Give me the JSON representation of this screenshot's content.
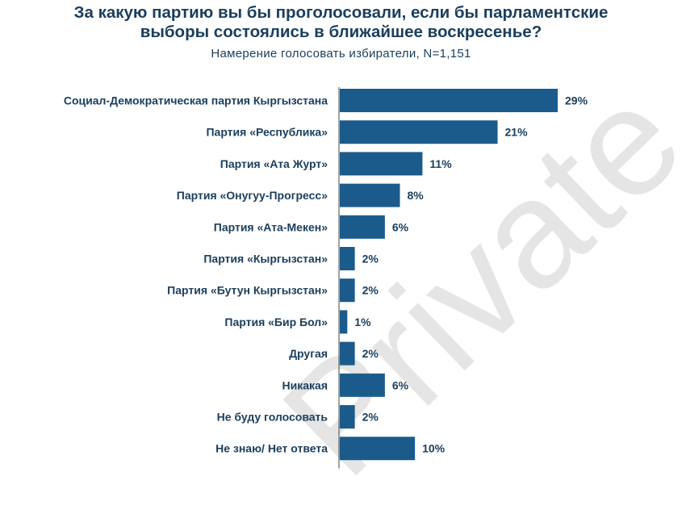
{
  "watermark": "Private",
  "colors": {
    "bar": "#1b5b8c",
    "axis": "#444444",
    "text": "#1a3e5c"
  },
  "chart_data": {
    "type": "bar",
    "orientation": "horizontal",
    "title": "За какую партию вы бы проголосовали, если бы парламентские выборы состоялись в ближайшее воскресенье?",
    "title_lines": [
      "За какую партию вы бы проголосовали, если бы парламентские",
      "выборы состоялись в ближайшее воскресенье?"
    ],
    "subtitle": "Намерение голосовать избиратели, N=1,151",
    "categories": [
      "Социал-Демократическая партия Кыргызстана",
      "Партия «Республика»",
      "Партия «Ата Журт»",
      "Партия «Онугуу-Прогресс»",
      "Партия «Ата-Мекен»",
      "Партия «Кыргызстан»",
      "Партия «Бутун Кыргызстан»",
      "Партия «Бир Бол»",
      "Другая",
      "Никакая",
      "Не буду голосовать",
      "Не знаю/ Нет ответа"
    ],
    "values": [
      29,
      21,
      11,
      8,
      6,
      2,
      2,
      1,
      2,
      6,
      2,
      10
    ],
    "value_labels": [
      "29%",
      "21%",
      "11%",
      "8%",
      "6%",
      "2%",
      "2%",
      "1%",
      "2%",
      "6%",
      "2%",
      "10%"
    ],
    "unit": "%",
    "xlim": [
      0,
      29
    ],
    "grid": false,
    "legend": "none"
  }
}
